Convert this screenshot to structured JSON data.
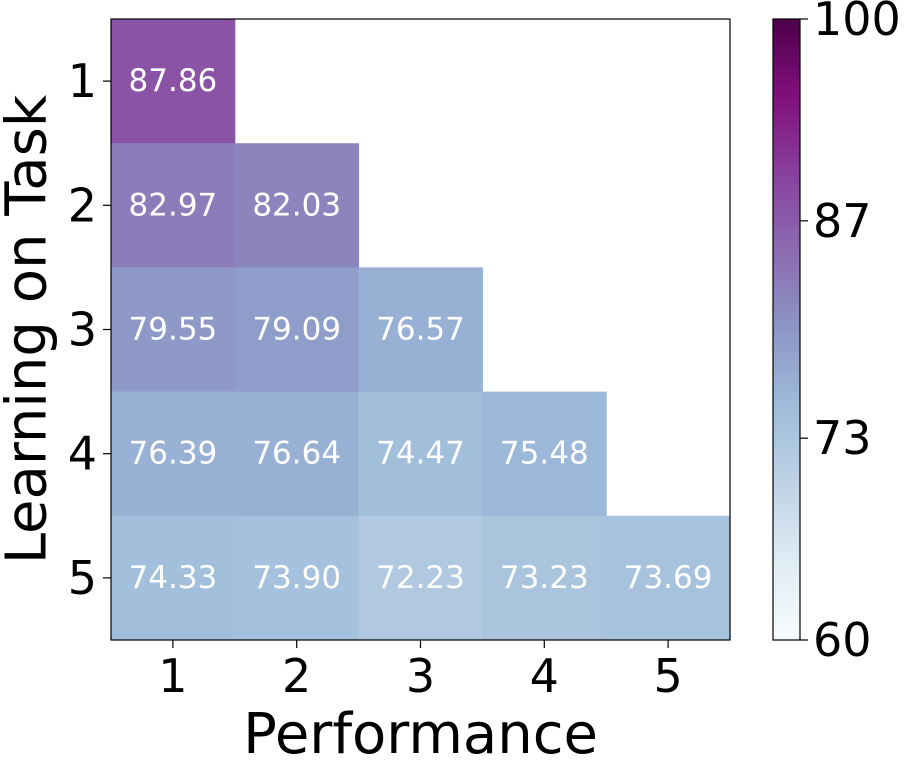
{
  "chart_data": {
    "type": "heatmap",
    "x_categories": [
      "1",
      "2",
      "3",
      "4",
      "5"
    ],
    "y_categories": [
      "1",
      "2",
      "3",
      "4",
      "5"
    ],
    "xlabel": "Performance",
    "ylabel": "Learning on Task",
    "rows": [
      [
        "87.86",
        null,
        null,
        null,
        null
      ],
      [
        "82.97",
        "82.03",
        null,
        null,
        null
      ],
      [
        "79.55",
        "79.09",
        "76.57",
        null,
        null
      ],
      [
        "76.39",
        "76.64",
        "74.47",
        "75.48",
        null
      ],
      [
        "74.33",
        "73.90",
        "72.23",
        "73.23",
        "73.69"
      ]
    ],
    "colorbar": {
      "range": [
        60,
        100
      ],
      "ticks": [
        "60",
        "73",
        "87",
        "100"
      ],
      "colormap": "BuPu",
      "colormap_stops": [
        "#f7fcfd",
        "#e0ecf4",
        "#bfd3e6",
        "#9ebcda",
        "#8c96c6",
        "#8c6bb1",
        "#88419d",
        "#810f7c",
        "#4d004b"
      ]
    }
  }
}
